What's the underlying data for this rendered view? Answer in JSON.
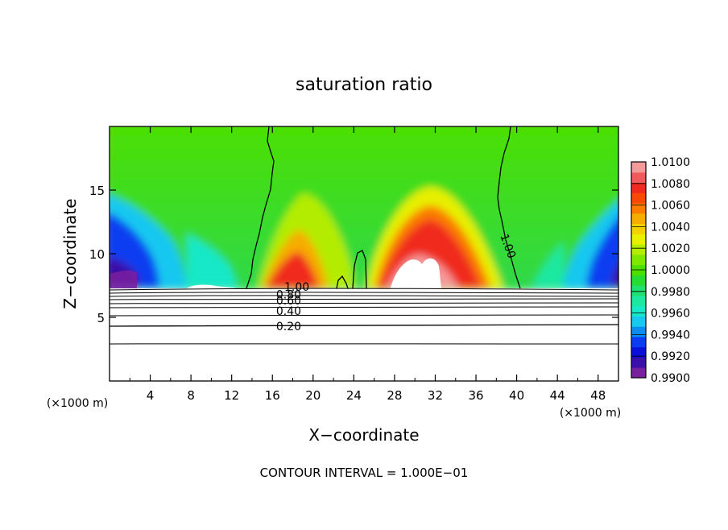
{
  "chart_data": {
    "type": "heatmap",
    "title": "saturation ratio",
    "xlabel": "X−coordinate",
    "ylabel": "Z−coordinate",
    "x_unit_left": "(×1000 m)",
    "x_unit_right": "(×1000 m)",
    "xlim": [
      0,
      50
    ],
    "ylim": [
      0,
      20
    ],
    "x_ticks": [
      4,
      8,
      12,
      16,
      20,
      24,
      28,
      32,
      36,
      40,
      44,
      48
    ],
    "x_tick_labels": [
      "4",
      "8",
      "12",
      "16",
      "20",
      "24",
      "28",
      "32",
      "36",
      "40",
      "44",
      "48"
    ],
    "y_ticks": [
      5,
      10,
      15
    ],
    "y_tick_labels": [
      "5",
      "10",
      "15"
    ],
    "footer": "CONTOUR INTERVAL = 1.000E−01",
    "colorbar": {
      "min": 0.99,
      "max": 1.01,
      "tick_labels": [
        "1.0100",
        "1.0080",
        "1.0060",
        "1.0040",
        "1.0020",
        "1.0000",
        "0.9980",
        "0.9960",
        "0.9940",
        "0.9920",
        "0.9900"
      ],
      "tick_values": [
        1.01,
        1.008,
        1.006,
        1.004,
        1.002,
        1.0,
        0.998,
        0.996,
        0.994,
        0.992,
        0.99
      ],
      "colors": [
        "#7a1fa0",
        "#3a10a8",
        "#0a10d8",
        "#0a3cf0",
        "#0a8cf0",
        "#18c8f0",
        "#18e8c8",
        "#1ee8a0",
        "#20e070",
        "#26dc30",
        "#4ce000",
        "#7ee800",
        "#b4ec00",
        "#e8f000",
        "#f4d000",
        "#f6ac00",
        "#fa7c00",
        "#f84a00",
        "#f02a1e",
        "#f05a5a",
        "#f49a9a"
      ]
    },
    "contour_labels": [
      {
        "text": "1.00",
        "x": 38.8,
        "z": 10.5
      },
      {
        "text": "1.00",
        "x": 18.4,
        "z": 7.1
      },
      {
        "text": "0.80",
        "x": 17.6,
        "z": 6.5
      },
      {
        "text": "0.60",
        "x": 17.6,
        "z": 6.0
      },
      {
        "text": "0.40",
        "x": 17.6,
        "z": 5.2
      },
      {
        "text": "0.20",
        "x": 17.6,
        "z": 4.0
      }
    ]
  }
}
